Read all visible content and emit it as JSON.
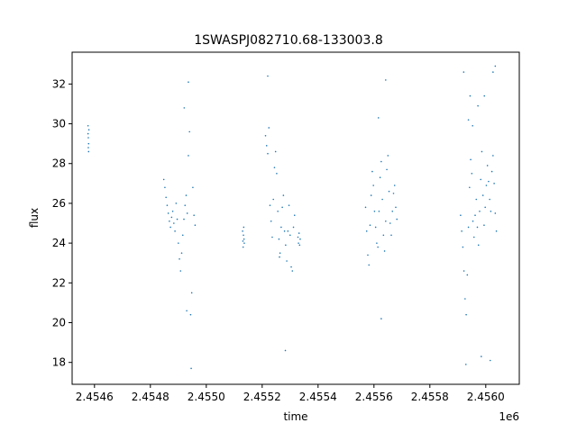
{
  "chart_data": {
    "type": "scatter",
    "title": "1SWASPJ082710.68-133003.8",
    "xlabel": "time",
    "ylabel": "flux",
    "x_offset_label": "1e6",
    "xlim": [
      2454520,
      2456120
    ],
    "ylim": [
      16.9,
      33.6
    ],
    "x_ticks": [
      2454600,
      2454800,
      2455000,
      2455200,
      2455400,
      2455600,
      2455800,
      2456000
    ],
    "x_tick_labels": [
      "2.4546",
      "2.4548",
      "2.4550",
      "2.4552",
      "2.4554",
      "2.4556",
      "2.4558",
      "2.4560"
    ],
    "y_ticks": [
      18,
      20,
      22,
      24,
      26,
      28,
      30,
      32
    ],
    "y_tick_labels": [
      "18",
      "20",
      "22",
      "24",
      "26",
      "28",
      "30",
      "32"
    ],
    "grid": false,
    "marker_color": "#1f77b4",
    "marker_size": "tiny",
    "series": [
      {
        "x": [
          2454577,
          2454577,
          2454578,
          2454578,
          2454579,
          2454579,
          2454580
        ],
        "y": [
          29.5,
          29.9,
          28.8,
          29.3,
          29.0,
          28.6,
          29.7
        ]
      },
      {
        "x": [
          2454848,
          2454852,
          2454856,
          2454860,
          2454864,
          2454868,
          2454872,
          2454876,
          2454880,
          2454884,
          2454888,
          2454892,
          2454896,
          2454900,
          2454904,
          2454908,
          2454912,
          2454916,
          2454920,
          2454924,
          2454928,
          2454932,
          2454936,
          2454940,
          2454944,
          2454948,
          2454952,
          2454956,
          2454960
        ],
        "y": [
          27.2,
          26.8,
          26.3,
          25.9,
          25.5,
          25.1,
          24.8,
          25.3,
          25.6,
          25.0,
          24.6,
          26.0,
          25.2,
          24.0,
          23.2,
          22.6,
          23.5,
          24.4,
          25.2,
          25.9,
          26.4,
          25.5,
          28.4,
          29.6,
          20.4,
          21.5,
          26.8,
          25.4,
          24.9
        ]
      },
      {
        "x": [
          2455130,
          2455131,
          2455132,
          2455133,
          2455134,
          2455135,
          2455136
        ],
        "y": [
          24.6,
          24.1,
          23.8,
          24.4,
          24.8,
          24.2,
          24.0
        ]
      },
      {
        "x": [
          2455212,
          2455216,
          2455220,
          2455224,
          2455228,
          2455232,
          2455236,
          2455240,
          2455244,
          2455248,
          2455252,
          2455256,
          2455260,
          2455264,
          2455268,
          2455272,
          2455276,
          2455280,
          2455284,
          2455288,
          2455292,
          2455296,
          2455300,
          2455304,
          2455308,
          2455312,
          2455316
        ],
        "y": [
          29.4,
          28.9,
          28.5,
          29.8,
          25.9,
          25.1,
          24.3,
          26.2,
          27.8,
          28.6,
          27.5,
          25.6,
          24.2,
          23.5,
          24.8,
          25.8,
          26.4,
          24.6,
          23.9,
          23.1,
          24.6,
          25.9,
          24.4,
          22.8,
          22.6,
          24.8,
          25.4
        ]
      },
      {
        "x": [
          2455328,
          2455330,
          2455332,
          2455334,
          2455336
        ],
        "y": [
          24.3,
          24.0,
          24.5,
          23.9,
          24.2
        ]
      },
      {
        "x": [
          2455570,
          2455574,
          2455578,
          2455582,
          2455586,
          2455590,
          2455594,
          2455598,
          2455602,
          2455606,
          2455610,
          2455614,
          2455618,
          2455622,
          2455626,
          2455630,
          2455634,
          2455638,
          2455642,
          2455646,
          2455650,
          2455654,
          2455658,
          2455662,
          2455666,
          2455670,
          2455674,
          2455678,
          2455682
        ],
        "y": [
          25.8,
          24.6,
          23.4,
          22.9,
          24.9,
          26.4,
          27.6,
          26.9,
          25.6,
          24.8,
          24.0,
          23.8,
          25.6,
          27.3,
          28.1,
          26.2,
          24.4,
          23.6,
          25.1,
          27.7,
          28.4,
          26.6,
          25.0,
          24.4,
          25.6,
          26.5,
          26.9,
          25.8,
          25.2
        ]
      },
      {
        "x": [
          2455910,
          2455914,
          2455918,
          2455922,
          2455926,
          2455930,
          2455934,
          2455938,
          2455942,
          2455946,
          2455950,
          2455954,
          2455958,
          2455962,
          2455966,
          2455970,
          2455974,
          2455978,
          2455982,
          2455986,
          2455990,
          2455994,
          2455998,
          2456002,
          2456006,
          2456010,
          2456014,
          2456018,
          2456022,
          2456026,
          2456030,
          2456034,
          2456038
        ],
        "y": [
          25.4,
          24.6,
          23.8,
          22.6,
          21.2,
          20.4,
          22.4,
          24.8,
          26.8,
          28.2,
          27.5,
          25.1,
          24.3,
          25.4,
          26.2,
          24.8,
          23.9,
          25.6,
          27.2,
          28.6,
          26.4,
          24.9,
          25.8,
          26.9,
          27.9,
          27.1,
          26.2,
          25.6,
          27.6,
          28.4,
          27.0,
          25.5,
          24.6
        ]
      },
      {
        "x": [
          2454921,
          2454930,
          2454936,
          2454946,
          2455220,
          2455262,
          2455283,
          2455616,
          2455626,
          2455642,
          2455921,
          2455944,
          2455953,
          2455972,
          2455984,
          2455995,
          2456016,
          2456026,
          2456034,
          2455938,
          2455929
        ],
        "y": [
          30.8,
          20.6,
          32.1,
          17.7,
          32.4,
          23.3,
          18.6,
          30.3,
          20.2,
          32.2,
          32.6,
          31.4,
          29.9,
          30.9,
          18.3,
          31.4,
          18.1,
          32.6,
          32.9,
          30.2,
          17.9
        ]
      }
    ]
  }
}
